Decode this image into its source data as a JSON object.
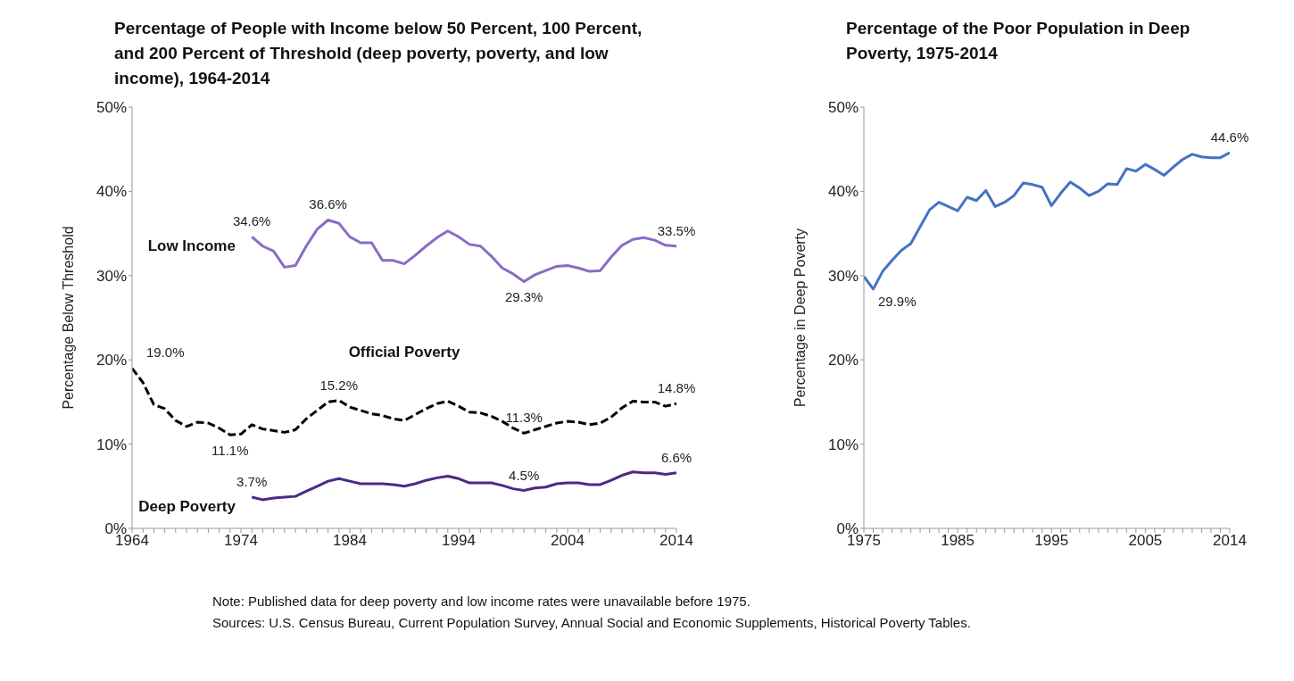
{
  "chart_data": [
    {
      "type": "line",
      "title": "Percentage of People with Income below 50 Percent, 100 Percent, and 200 Percent of Threshold (deep poverty, poverty, and low income), 1964-2014",
      "ylabel": "Percentage Below Threshold",
      "xlim": [
        1964,
        2014
      ],
      "ylim": [
        0,
        50
      ],
      "legend": false,
      "grid": false,
      "marker": "none",
      "xticks": [
        1964,
        {
          "value": 1965,
          "label": null
        },
        {
          "value": 1966,
          "label": null
        },
        {
          "value": 1967,
          "label": null
        },
        {
          "value": 1968,
          "label": null
        },
        {
          "value": 1969,
          "label": null
        },
        {
          "value": 1970,
          "label": null
        },
        {
          "value": 1971,
          "label": null
        },
        {
          "value": 1972,
          "label": null
        },
        {
          "value": 1973,
          "label": null
        },
        1974,
        {
          "value": 1975,
          "label": null
        },
        {
          "value": 1976,
          "label": null
        },
        {
          "value": 1977,
          "label": null
        },
        {
          "value": 1978,
          "label": null
        },
        {
          "value": 1979,
          "label": null
        },
        {
          "value": 1980,
          "label": null
        },
        {
          "value": 1981,
          "label": null
        },
        {
          "value": 1982,
          "label": null
        },
        {
          "value": 1983,
          "label": null
        },
        1984,
        {
          "value": 1985,
          "label": null
        },
        {
          "value": 1986,
          "label": null
        },
        {
          "value": 1987,
          "label": null
        },
        {
          "value": 1988,
          "label": null
        },
        {
          "value": 1989,
          "label": null
        },
        {
          "value": 1990,
          "label": null
        },
        {
          "value": 1991,
          "label": null
        },
        {
          "value": 1992,
          "label": null
        },
        {
          "value": 1993,
          "label": null
        },
        1994,
        {
          "value": 1995,
          "label": null
        },
        {
          "value": 1996,
          "label": null
        },
        {
          "value": 1997,
          "label": null
        },
        {
          "value": 1998,
          "label": null
        },
        {
          "value": 1999,
          "label": null
        },
        {
          "value": 2000,
          "label": null
        },
        {
          "value": 2001,
          "label": null
        },
        {
          "value": 2002,
          "label": null
        },
        {
          "value": 2003,
          "label": null
        },
        2004,
        {
          "value": 2005,
          "label": null
        },
        {
          "value": 2006,
          "label": null
        },
        {
          "value": 2007,
          "label": null
        },
        {
          "value": 2008,
          "label": null
        },
        {
          "value": 2009,
          "label": null
        },
        {
          "value": 2010,
          "label": null
        },
        {
          "value": 2011,
          "label": null
        },
        {
          "value": 2012,
          "label": null
        },
        {
          "value": 2013,
          "label": null
        },
        2014
      ],
      "yticks": [
        {
          "value": 0,
          "label": "0%"
        },
        {
          "value": 10,
          "label": "10%"
        },
        {
          "value": 20,
          "label": "20%"
        },
        {
          "value": 30,
          "label": "30%"
        },
        {
          "value": 40,
          "label": "40%"
        },
        {
          "value": 50,
          "label": "50%"
        }
      ],
      "series": [
        {
          "name": "Low Income",
          "color": "#8a6cc4",
          "line_style": "solid",
          "x": [
            1975,
            1976,
            1977,
            1978,
            1979,
            1980,
            1981,
            1982,
            1983,
            1984,
            1985,
            1986,
            1987,
            1988,
            1989,
            1990,
            1991,
            1992,
            1993,
            1994,
            1995,
            1996,
            1997,
            1998,
            1999,
            2000,
            2001,
            2002,
            2003,
            2004,
            2005,
            2006,
            2007,
            2008,
            2009,
            2010,
            2011,
            2012,
            2013,
            2014
          ],
          "values": [
            34.6,
            33.5,
            32.9,
            31.0,
            31.2,
            33.5,
            35.5,
            36.6,
            36.2,
            34.6,
            33.9,
            33.9,
            31.8,
            31.8,
            31.4,
            32.4,
            33.5,
            34.5,
            35.3,
            34.6,
            33.7,
            33.5,
            32.3,
            30.9,
            30.2,
            29.3,
            30.1,
            30.6,
            31.1,
            31.2,
            30.9,
            30.5,
            30.6,
            32.2,
            33.6,
            34.3,
            34.5,
            34.2,
            33.6,
            33.5
          ]
        },
        {
          "name": "Official Poverty",
          "color": "#000000",
          "line_style": "dashed",
          "x": [
            1964,
            1965,
            1966,
            1967,
            1968,
            1969,
            1970,
            1971,
            1972,
            1973,
            1974,
            1975,
            1976,
            1977,
            1978,
            1979,
            1980,
            1981,
            1982,
            1983,
            1984,
            1985,
            1986,
            1987,
            1988,
            1989,
            1990,
            1991,
            1992,
            1993,
            1994,
            1995,
            1996,
            1997,
            1998,
            1999,
            2000,
            2001,
            2002,
            2003,
            2004,
            2005,
            2006,
            2007,
            2008,
            2009,
            2010,
            2011,
            2012,
            2013,
            2014
          ],
          "values": [
            19.0,
            17.3,
            14.7,
            14.2,
            12.8,
            12.1,
            12.6,
            12.5,
            11.9,
            11.1,
            11.2,
            12.3,
            11.8,
            11.6,
            11.4,
            11.7,
            13.0,
            14.0,
            15.0,
            15.2,
            14.4,
            14.0,
            13.6,
            13.4,
            13.0,
            12.8,
            13.5,
            14.2,
            14.8,
            15.1,
            14.5,
            13.8,
            13.7,
            13.3,
            12.7,
            11.9,
            11.3,
            11.7,
            12.1,
            12.5,
            12.7,
            12.6,
            12.3,
            12.5,
            13.2,
            14.3,
            15.1,
            15.0,
            15.0,
            14.5,
            14.8
          ]
        },
        {
          "name": "Deep Poverty",
          "color": "#4b2a86",
          "line_style": "solid",
          "x": [
            1975,
            1976,
            1977,
            1978,
            1979,
            1980,
            1981,
            1982,
            1983,
            1984,
            1985,
            1986,
            1987,
            1988,
            1989,
            1990,
            1991,
            1992,
            1993,
            1994,
            1995,
            1996,
            1997,
            1998,
            1999,
            2000,
            2001,
            2002,
            2003,
            2004,
            2005,
            2006,
            2007,
            2008,
            2009,
            2010,
            2011,
            2012,
            2013,
            2014
          ],
          "values": [
            3.7,
            3.4,
            3.6,
            3.7,
            3.8,
            4.4,
            5.0,
            5.6,
            5.9,
            5.6,
            5.3,
            5.3,
            5.3,
            5.2,
            5.0,
            5.3,
            5.7,
            6.0,
            6.2,
            5.9,
            5.4,
            5.4,
            5.4,
            5.1,
            4.7,
            4.5,
            4.8,
            4.9,
            5.3,
            5.4,
            5.4,
            5.2,
            5.2,
            5.7,
            6.3,
            6.7,
            6.6,
            6.6,
            6.4,
            6.6
          ]
        }
      ],
      "annotations": [
        {
          "text": "34.6%",
          "x": 1975,
          "y": 34.6
        },
        {
          "text": "36.6%",
          "x": 1982,
          "y": 36.6
        },
        {
          "text": "29.3%",
          "x": 2000,
          "y": 29.3
        },
        {
          "text": "33.5%",
          "x": 2014,
          "y": 33.5
        },
        {
          "text": "19.0%",
          "x": 1964,
          "y": 19.0
        },
        {
          "text": "11.1%",
          "x": 1973,
          "y": 11.1
        },
        {
          "text": "15.2%",
          "x": 1983,
          "y": 15.2
        },
        {
          "text": "11.3%",
          "x": 2000,
          "y": 11.3
        },
        {
          "text": "14.8%",
          "x": 2014,
          "y": 14.8
        },
        {
          "text": "3.7%",
          "x": 1975,
          "y": 3.7
        },
        {
          "text": "4.5%",
          "x": 2000,
          "y": 4.5
        },
        {
          "text": "6.6%",
          "x": 2014,
          "y": 6.6
        },
        "Note: Published data for deep poverty and low income rates were unavailable before 1975.",
        "Sources:  U.S. Census Bureau, Current Population Survey, Annual Social and Economic Supplements, Historical Poverty Tables."
      ]
    },
    {
      "type": "line",
      "title": "Percentage of the Poor Population in Deep Poverty, 1975-2014",
      "ylabel": "Percentage in Deep Poverty",
      "xlim": [
        1975,
        2014
      ],
      "ylim": [
        0,
        50
      ],
      "legend": false,
      "grid": false,
      "marker": "none",
      "xticks": [
        1975,
        {
          "value": 1976,
          "label": null
        },
        {
          "value": 1977,
          "label": null
        },
        {
          "value": 1978,
          "label": null
        },
        {
          "value": 1979,
          "label": null
        },
        {
          "value": 1980,
          "label": null
        },
        {
          "value": 1981,
          "label": null
        },
        {
          "value": 1982,
          "label": null
        },
        {
          "value": 1983,
          "label": null
        },
        {
          "value": 1984,
          "label": null
        },
        1985,
        {
          "value": 1986,
          "label": null
        },
        {
          "value": 1987,
          "label": null
        },
        {
          "value": 1988,
          "label": null
        },
        {
          "value": 1989,
          "label": null
        },
        {
          "value": 1990,
          "label": null
        },
        {
          "value": 1991,
          "label": null
        },
        {
          "value": 1992,
          "label": null
        },
        {
          "value": 1993,
          "label": null
        },
        {
          "value": 1994,
          "label": null
        },
        1995,
        {
          "value": 1996,
          "label": null
        },
        {
          "value": 1997,
          "label": null
        },
        {
          "value": 1998,
          "label": null
        },
        {
          "value": 1999,
          "label": null
        },
        {
          "value": 2000,
          "label": null
        },
        {
          "value": 2001,
          "label": null
        },
        {
          "value": 2002,
          "label": null
        },
        {
          "value": 2003,
          "label": null
        },
        {
          "value": 2004,
          "label": null
        },
        2005,
        {
          "value": 2006,
          "label": null
        },
        {
          "value": 2007,
          "label": null
        },
        {
          "value": 2008,
          "label": null
        },
        {
          "value": 2009,
          "label": null
        },
        {
          "value": 2010,
          "label": null
        },
        {
          "value": 2011,
          "label": null
        },
        {
          "value": 2012,
          "label": null
        },
        {
          "value": 2013,
          "label": null
        },
        2014
      ],
      "yticks": [
        {
          "value": 0,
          "label": "0%"
        },
        {
          "value": 10,
          "label": "10%"
        },
        {
          "value": 20,
          "label": "20%"
        },
        {
          "value": 30,
          "label": "30%"
        },
        {
          "value": 40,
          "label": "40%"
        },
        {
          "value": 50,
          "label": "50%"
        }
      ],
      "series": [
        {
          "color": "#4472c4",
          "line_style": "solid",
          "x": [
            1975,
            1976,
            1977,
            1978,
            1979,
            1980,
            1981,
            1982,
            1983,
            1984,
            1985,
            1986,
            1987,
            1988,
            1989,
            1990,
            1991,
            1992,
            1993,
            1994,
            1995,
            1996,
            1997,
            1998,
            1999,
            2000,
            2001,
            2002,
            2003,
            2004,
            2005,
            2006,
            2007,
            2008,
            2009,
            2010,
            2011,
            2012,
            2013,
            2014
          ],
          "values": [
            29.9,
            28.4,
            30.5,
            31.8,
            33.0,
            33.8,
            35.8,
            37.8,
            38.7,
            38.2,
            37.7,
            39.3,
            38.9,
            40.1,
            38.2,
            38.7,
            39.5,
            41.0,
            40.8,
            40.5,
            38.3,
            39.8,
            41.1,
            40.4,
            39.5,
            40.0,
            40.9,
            40.8,
            42.7,
            42.4,
            43.2,
            42.6,
            41.9,
            42.9,
            43.8,
            44.4,
            44.1,
            44.0,
            44.0,
            44.6
          ]
        }
      ],
      "annotations": [
        {
          "text": "29.9%",
          "x": 1975,
          "y": 29.9
        },
        {
          "text": "44.6%",
          "x": 2014,
          "y": 44.6
        }
      ]
    }
  ]
}
